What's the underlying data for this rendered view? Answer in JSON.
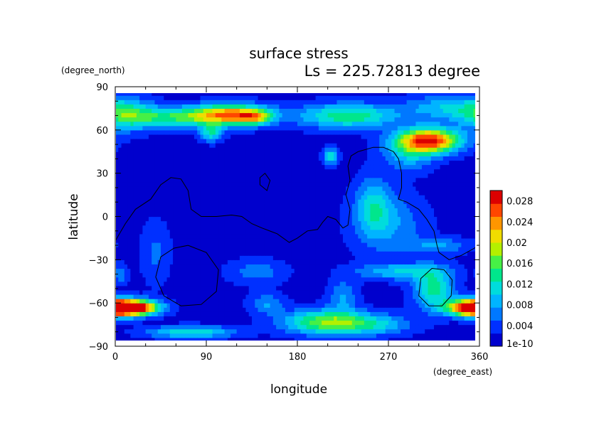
{
  "chart_data": {
    "type": "heatmap",
    "title": "surface stress",
    "subtitle": "Ls = 225.72813 degree",
    "xlabel": "longitude",
    "ylabel": "latitude",
    "x_unit": "(degree_east)",
    "y_unit": "(degree_north)",
    "xlim": [
      0,
      360
    ],
    "ylim": [
      -90,
      90
    ],
    "x_ticks": [
      "0",
      "90",
      "180",
      "270",
      "360"
    ],
    "x_tick_values": [
      0,
      90,
      180,
      270,
      360
    ],
    "y_ticks": [
      "90",
      "60",
      "30",
      "0",
      "−30",
      "−60",
      "−90"
    ],
    "y_tick_values": [
      90,
      60,
      30,
      0,
      -30,
      -60,
      -90
    ],
    "colorbar": {
      "min": 0,
      "max": 0.03,
      "ticks": [
        "1e-10",
        "0.004",
        "0.008",
        "0.012",
        "0.016",
        "0.02",
        "0.024",
        "0.028"
      ],
      "tick_values": [
        0,
        0.004,
        0.008,
        0.012,
        0.016,
        0.02,
        0.024,
        0.028
      ],
      "colors": [
        "#0000cd",
        "#0030ff",
        "#0078ff",
        "#00b4ff",
        "#00dcdc",
        "#00e68c",
        "#46f046",
        "#b4f000",
        "#f0dc00",
        "#ff9600",
        "#ff4600",
        "#dc0000"
      ]
    },
    "background_value": 0.0015,
    "hotspots": [
      {
        "lon": 115,
        "lat": 71,
        "slon": 26,
        "slat": 5,
        "v": 0.02
      },
      {
        "lon": 138,
        "lat": 69,
        "slon": 11,
        "slat": 3.5,
        "v": 0.01
      },
      {
        "lon": 60,
        "lat": 69,
        "slon": 40,
        "slat": 5,
        "v": 0.012
      },
      {
        "lon": 10,
        "lat": 71,
        "slon": 20,
        "slat": 8,
        "v": 0.009
      },
      {
        "lon": 230,
        "lat": 70,
        "slon": 35,
        "slat": 6,
        "v": 0.013
      },
      {
        "lon": 330,
        "lat": 76,
        "slon": 30,
        "slat": 6,
        "v": 0.008
      },
      {
        "lon": 95,
        "lat": 58,
        "slon": 8,
        "slat": 4,
        "v": 0.01
      },
      {
        "lon": 310,
        "lat": 53,
        "slon": 22,
        "slat": 6,
        "v": 0.027
      },
      {
        "lon": 290,
        "lat": 43,
        "slon": 18,
        "slat": 8,
        "v": 0.007
      },
      {
        "lon": 213,
        "lat": 42,
        "slon": 5,
        "slat": 4,
        "v": 0.011
      },
      {
        "lon": 255,
        "lat": 8,
        "slon": 12,
        "slat": 14,
        "v": 0.008
      },
      {
        "lon": 270,
        "lat": -5,
        "slon": 25,
        "slat": 15,
        "v": 0.006
      },
      {
        "lon": 320,
        "lat": -20,
        "slon": 22,
        "slat": 4,
        "v": 0.006
      },
      {
        "lon": 5,
        "lat": -63,
        "slon": 20,
        "slat": 4,
        "v": 0.022
      },
      {
        "lon": 25,
        "lat": -63,
        "slon": 16,
        "slat": 3.5,
        "v": 0.014
      },
      {
        "lon": 355,
        "lat": -63,
        "slon": 18,
        "slat": 4,
        "v": 0.022
      },
      {
        "lon": 315,
        "lat": -50,
        "slon": 14,
        "slat": 10,
        "v": 0.012
      },
      {
        "lon": 210,
        "lat": -73,
        "slon": 30,
        "slat": 6,
        "v": 0.016
      },
      {
        "lon": 75,
        "lat": -80,
        "slon": 30,
        "slat": 3,
        "v": 0.011
      },
      {
        "lon": 280,
        "lat": -38,
        "slon": 30,
        "slat": 4,
        "v": 0.008
      },
      {
        "lon": 260,
        "lat": -75,
        "slon": 25,
        "slat": 5,
        "v": 0.007
      },
      {
        "lon": 150,
        "lat": -60,
        "slon": 12,
        "slat": 5,
        "v": 0.006
      },
      {
        "lon": 225,
        "lat": -55,
        "slon": 10,
        "slat": 8,
        "v": 0.006
      },
      {
        "lon": 40,
        "lat": -25,
        "slon": 10,
        "slat": 15,
        "v": 0.004
      },
      {
        "lon": 5,
        "lat": -40,
        "slon": 5,
        "slat": 5,
        "v": 0.005
      },
      {
        "lon": 140,
        "lat": -38,
        "slon": 20,
        "slat": 6,
        "v": 0.005
      }
    ],
    "contours": [
      {
        "name": "continent-outline",
        "points": [
          [
            0,
            -17
          ],
          [
            10,
            -5
          ],
          [
            20,
            5
          ],
          [
            35,
            12
          ],
          [
            45,
            22
          ],
          [
            55,
            27
          ],
          [
            65,
            26
          ],
          [
            72,
            18
          ],
          [
            75,
            5
          ],
          [
            85,
            0
          ],
          [
            100,
            0
          ],
          [
            115,
            1
          ],
          [
            125,
            0
          ],
          [
            135,
            -5
          ],
          [
            145,
            -8
          ],
          [
            160,
            -12
          ],
          [
            172,
            -18
          ],
          [
            180,
            -15
          ],
          [
            190,
            -10
          ],
          [
            200,
            -9
          ],
          [
            205,
            -4
          ],
          [
            210,
            0
          ],
          [
            218,
            -2
          ],
          [
            225,
            -8
          ],
          [
            230,
            -6
          ],
          [
            232,
            5
          ],
          [
            228,
            15
          ],
          [
            232,
            25
          ],
          [
            230,
            35
          ],
          [
            233,
            42
          ],
          [
            240,
            45
          ],
          [
            255,
            48
          ],
          [
            265,
            48
          ],
          [
            275,
            45
          ],
          [
            280,
            40
          ],
          [
            283,
            30
          ],
          [
            283,
            20
          ],
          [
            280,
            12
          ],
          [
            288,
            10
          ],
          [
            300,
            5
          ],
          [
            308,
            -2
          ],
          [
            315,
            -10
          ],
          [
            318,
            -20
          ],
          [
            320,
            -25
          ],
          [
            330,
            -30
          ],
          [
            342,
            -27
          ],
          [
            355,
            -22
          ],
          [
            360,
            -19
          ]
        ]
      },
      {
        "name": "small-loop",
        "points": [
          [
            143,
            22
          ],
          [
            150,
            18
          ],
          [
            153,
            25
          ],
          [
            148,
            30
          ],
          [
            143,
            27
          ],
          [
            143,
            22
          ]
        ]
      },
      {
        "name": "big-basin-ring",
        "points": [
          [
            72,
            -20
          ],
          [
            90,
            -25
          ],
          [
            102,
            -37
          ],
          [
            100,
            -52
          ],
          [
            85,
            -61
          ],
          [
            65,
            -62
          ],
          [
            48,
            -55
          ],
          [
            40,
            -42
          ],
          [
            45,
            -28
          ],
          [
            58,
            -22
          ],
          [
            72,
            -20
          ]
        ]
      },
      {
        "name": "right-basin-ring",
        "points": [
          [
            325,
            -37
          ],
          [
            333,
            -44
          ],
          [
            332,
            -55
          ],
          [
            323,
            -62
          ],
          [
            310,
            -62
          ],
          [
            300,
            -55
          ],
          [
            302,
            -43
          ],
          [
            313,
            -36
          ],
          [
            325,
            -37
          ]
        ]
      }
    ],
    "grid": false,
    "legend": "colorbar-right"
  }
}
